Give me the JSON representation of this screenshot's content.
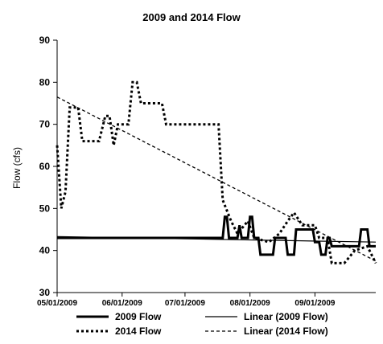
{
  "chart_data": {
    "type": "line",
    "title": "2009 and 2014 Flow",
    "xlabel": "",
    "ylabel": "Flow (cfs)",
    "ylim": [
      30,
      90
    ],
    "yticks": [
      30,
      40,
      50,
      60,
      70,
      80,
      90
    ],
    "xlim": [
      "05/01/2009",
      "09/30/2009"
    ],
    "xticks": [
      "05/01/2009",
      "06/01/2009",
      "07/01/2009",
      "08/01/2009",
      "09/01/2009"
    ],
    "grid": false,
    "legend_position": "bottom",
    "series": [
      {
        "name": "2009 Flow",
        "style": "solid-thick",
        "color": "#000000",
        "points": [
          [
            "05/01/2009",
            43
          ],
          [
            "07/19/2009",
            43
          ],
          [
            "07/20/2009",
            48
          ],
          [
            "07/21/2009",
            48
          ],
          [
            "07/22/2009",
            43
          ],
          [
            "07/26/2009",
            43
          ],
          [
            "07/27/2009",
            46
          ],
          [
            "07/28/2009",
            43
          ],
          [
            "07/31/2009",
            43
          ],
          [
            "08/01/2009",
            48
          ],
          [
            "08/02/2009",
            48
          ],
          [
            "08/03/2009",
            43
          ],
          [
            "08/05/2009",
            43
          ],
          [
            "08/06/2009",
            39
          ],
          [
            "08/12/2009",
            39
          ],
          [
            "08/13/2009",
            43
          ],
          [
            "08/18/2009",
            43
          ],
          [
            "08/19/2009",
            39
          ],
          [
            "08/22/2009",
            39
          ],
          [
            "08/23/2009",
            45
          ],
          [
            "08/31/2009",
            45
          ],
          [
            "09/01/2009",
            42
          ],
          [
            "09/03/2009",
            42
          ],
          [
            "09/04/2009",
            39
          ],
          [
            "09/06/2009",
            39
          ],
          [
            "09/07/2009",
            43
          ],
          [
            "09/08/2009",
            43
          ],
          [
            "09/09/2009",
            41
          ],
          [
            "09/22/2009",
            41
          ],
          [
            "09/23/2009",
            45
          ],
          [
            "09/26/2009",
            45
          ],
          [
            "09/27/2009",
            41
          ],
          [
            "09/30/2009",
            41
          ]
        ]
      },
      {
        "name": "2014 Flow",
        "style": "dotted-thick",
        "color": "#000000",
        "points": [
          [
            "05/01/2009",
            65
          ],
          [
            "05/03/2009",
            50
          ],
          [
            "05/05/2009",
            54
          ],
          [
            "05/07/2009",
            74
          ],
          [
            "05/11/2009",
            74
          ],
          [
            "05/13/2009",
            66
          ],
          [
            "05/21/2009",
            66
          ],
          [
            "05/24/2009",
            72
          ],
          [
            "05/26/2009",
            72
          ],
          [
            "05/28/2009",
            65
          ],
          [
            "05/30/2009",
            70
          ],
          [
            "06/04/2009",
            70
          ],
          [
            "06/06/2009",
            80
          ],
          [
            "06/08/2009",
            80
          ],
          [
            "06/10/2009",
            75
          ],
          [
            "06/20/2009",
            75
          ],
          [
            "06/22/2009",
            70
          ],
          [
            "07/17/2009",
            70
          ],
          [
            "07/19/2009",
            52
          ],
          [
            "07/23/2009",
            47
          ],
          [
            "07/26/2009",
            44
          ],
          [
            "07/31/2009",
            47
          ],
          [
            "08/03/2009",
            43
          ],
          [
            "08/10/2009",
            42
          ],
          [
            "08/15/2009",
            44
          ],
          [
            "08/19/2009",
            47
          ],
          [
            "08/22/2009",
            49
          ],
          [
            "08/26/2009",
            46
          ],
          [
            "09/01/2009",
            46
          ],
          [
            "09/03/2009",
            43
          ],
          [
            "09/07/2009",
            43
          ],
          [
            "09/09/2009",
            37
          ],
          [
            "09/15/2009",
            37
          ],
          [
            "09/20/2009",
            40
          ],
          [
            "09/26/2009",
            41
          ],
          [
            "09/30/2009",
            37
          ]
        ]
      },
      {
        "name": "Linear (2009 Flow)",
        "style": "solid-thin",
        "color": "#000000",
        "points": [
          [
            "05/01/2009",
            43.3
          ],
          [
            "09/30/2009",
            42.0
          ]
        ]
      },
      {
        "name": "Linear (2014 Flow)",
        "style": "dashed-thin",
        "color": "#000000",
        "points": [
          [
            "05/01/2009",
            76.5
          ],
          [
            "09/30/2009",
            37.5
          ]
        ]
      }
    ]
  }
}
